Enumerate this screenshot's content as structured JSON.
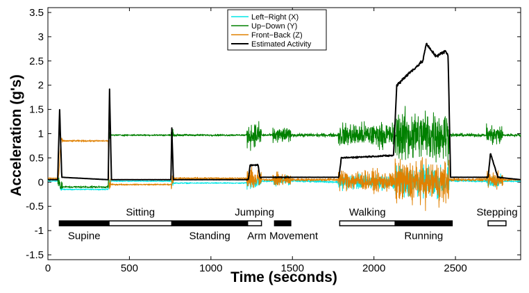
{
  "chart_data": {
    "type": "line",
    "title": "",
    "xlabel": "Time (seconds)",
    "ylabel": "Acceleration (g's)",
    "xlim": [
      0,
      2900
    ],
    "ylim": [
      -1.6,
      3.6
    ],
    "xticks": [
      0,
      500,
      1000,
      1500,
      2000,
      2500
    ],
    "xtick_labels": [
      "0",
      "500",
      "1000",
      "1500",
      "2000",
      "2500"
    ],
    "yticks": [
      -1.5,
      -1,
      -0.5,
      0,
      0.5,
      1,
      1.5,
      2,
      2.5,
      3,
      3.5
    ],
    "ytick_labels": [
      "-1.5",
      "-1",
      "-0.5",
      "0",
      "0.5",
      "1",
      "1.5",
      "2",
      "2.5",
      "3",
      "3.5"
    ],
    "legend_position": "top-center",
    "series": [
      {
        "name": "Left−Right (X)",
        "color": "#00e6e6",
        "x": [
          0,
          65,
          80,
          370,
          375,
          760,
          765,
          1200,
          1250,
          1260,
          1300,
          1400,
          1480,
          1800,
          2100,
          2130,
          2450,
          2460,
          2700,
          2750,
          2800,
          2900
        ],
        "values": [
          0.02,
          0.02,
          -0.15,
          -0.15,
          0.02,
          0.02,
          -0.02,
          -0.02,
          0.0,
          0.0,
          0.02,
          0.02,
          0.03,
          0.0,
          0.0,
          0.0,
          0.0,
          0.03,
          0.02,
          0.02,
          0.02,
          0.02
        ]
      },
      {
        "name": "Up−Down (Y)",
        "color": "#008000",
        "x": [
          0,
          65,
          80,
          370,
          375,
          760,
          765,
          1200,
          1250,
          1260,
          1300,
          1700,
          1800,
          2100,
          2130,
          2300,
          2450,
          2460,
          2700,
          2750,
          2800,
          2900
        ],
        "values": [
          0.05,
          0.05,
          -0.1,
          -0.1,
          0.97,
          0.97,
          0.97,
          0.97,
          0.97,
          0.97,
          0.97,
          0.97,
          0.97,
          0.97,
          0.97,
          0.97,
          0.97,
          0.97,
          0.97,
          0.97,
          0.97,
          0.97
        ]
      },
      {
        "name": "Front−Back (Z)",
        "color": "#e08000",
        "x": [
          0,
          65,
          80,
          370,
          375,
          760,
          765,
          1200,
          1300,
          1800,
          2130,
          2450,
          2460,
          2900
        ],
        "values": [
          0.08,
          0.08,
          0.85,
          0.85,
          -0.05,
          -0.05,
          0.08,
          0.08,
          0.05,
          0.05,
          0.0,
          0.0,
          0.05,
          0.05
        ]
      },
      {
        "name": "Estimated Activity",
        "color": "#000000",
        "x": [
          0,
          60,
          72,
          85,
          370,
          378,
          390,
          755,
          760,
          770,
          1230,
          1240,
          1290,
          1300,
          1380,
          1480,
          1785,
          1800,
          2120,
          2140,
          2200,
          2300,
          2320,
          2380,
          2440,
          2455,
          2470,
          2700,
          2715,
          2760,
          2900
        ],
        "values": [
          0.05,
          0.05,
          1.5,
          0.1,
          0.05,
          1.92,
          0.05,
          0.05,
          1.12,
          0.05,
          0.05,
          0.35,
          0.35,
          0.1,
          0.1,
          0.1,
          0.1,
          0.5,
          0.55,
          2.0,
          2.2,
          2.5,
          2.85,
          2.6,
          2.7,
          2.6,
          0.1,
          0.1,
          0.6,
          0.1,
          0.05
        ]
      }
    ],
    "activities": [
      {
        "label": "Supine",
        "start": 70,
        "end": 375,
        "fill": "black",
        "label_row": "below"
      },
      {
        "label": "Sitting",
        "start": 375,
        "end": 760,
        "fill": "white",
        "label_row": "above"
      },
      {
        "label": "Standing",
        "start": 760,
        "end": 1225,
        "fill": "black",
        "label_row": "below"
      },
      {
        "label": "Jumping",
        "start": 1225,
        "end": 1310,
        "fill": "white",
        "label_row": "above"
      },
      {
        "label": "Arm Movement",
        "start": 1390,
        "end": 1490,
        "fill": "black",
        "label_row": "below"
      },
      {
        "label": "Walking",
        "start": 1790,
        "end": 2130,
        "fill": "white",
        "label_row": "above"
      },
      {
        "label": "Running",
        "start": 2130,
        "end": 2480,
        "fill": "black",
        "label_row": "below"
      },
      {
        "label": "Stepping",
        "start": 2700,
        "end": 2810,
        "fill": "white",
        "label_row": "above"
      }
    ]
  }
}
